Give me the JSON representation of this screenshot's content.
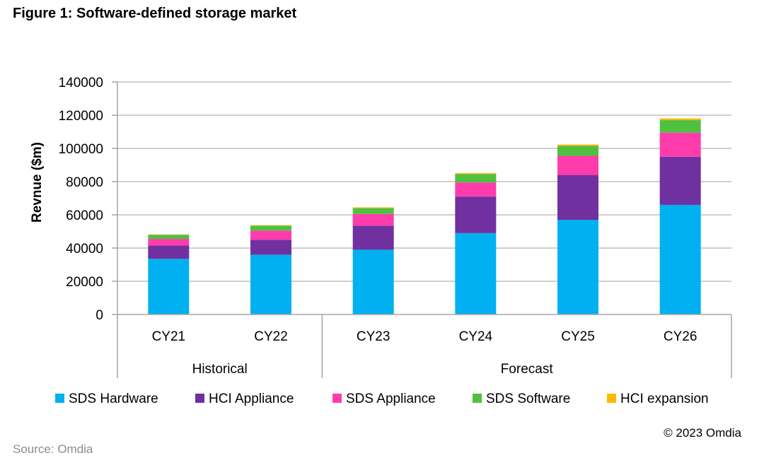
{
  "title": "Figure 1: Software-defined storage market",
  "source": "Source: Omdia",
  "copyright": "© 2023 Omdia",
  "chart_data": {
    "type": "bar",
    "stacked": true,
    "categories": [
      "CY21",
      "CY22",
      "CY23",
      "CY24",
      "CY25",
      "CY26"
    ],
    "groups": [
      {
        "label": "Historical",
        "categories": [
          "CY21",
          "CY22"
        ]
      },
      {
        "label": "Forecast",
        "categories": [
          "CY23",
          "CY24",
          "CY25",
          "CY26"
        ]
      }
    ],
    "series": [
      {
        "name": "SDS Hardware",
        "color": "#00B0F0",
        "values": [
          33500,
          36000,
          39000,
          49000,
          57000,
          66000
        ]
      },
      {
        "name": "HCI Appliance",
        "color": "#7030A0",
        "values": [
          8000,
          9000,
          14500,
          22000,
          27000,
          29000
        ]
      },
      {
        "name": "SDS Appliance",
        "color": "#FF3CAC",
        "values": [
          4000,
          5500,
          7000,
          8500,
          11500,
          14500
        ]
      },
      {
        "name": "SDS Software",
        "color": "#50C040",
        "values": [
          2500,
          3000,
          3500,
          5000,
          6000,
          7500
        ]
      },
      {
        "name": "HCI expansion",
        "color": "#FFB800",
        "values": [
          200,
          300,
          500,
          600,
          800,
          1000
        ]
      }
    ],
    "ylabel": "Revnue ($m)",
    "xlabel": "",
    "ylim": [
      0,
      140000
    ],
    "yticks": [
      0,
      20000,
      40000,
      60000,
      80000,
      100000,
      120000,
      140000
    ],
    "grid": true,
    "legend": "bottom"
  }
}
